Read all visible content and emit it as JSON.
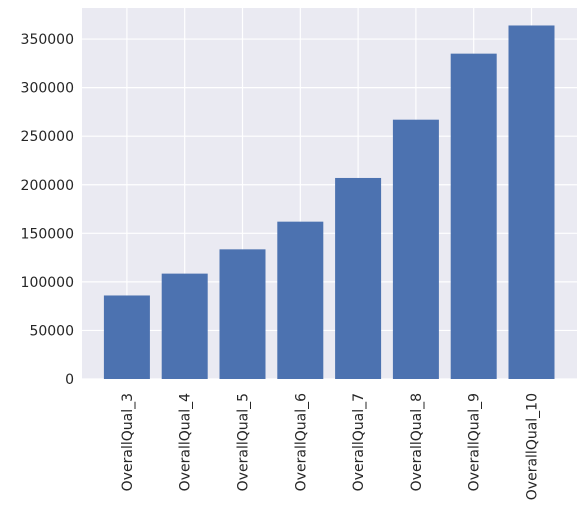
{
  "chart_data": {
    "type": "bar",
    "title": "",
    "xlabel": "",
    "ylabel": "",
    "categories": [
      "OverallQual_3",
      "OverallQual_4",
      "OverallQual_5",
      "OverallQual_6",
      "OverallQual_7",
      "OverallQual_8",
      "OverallQual_9",
      "OverallQual_10"
    ],
    "values": [
      86000,
      108500,
      133500,
      162000,
      207000,
      267000,
      335000,
      364000
    ],
    "ylim": [
      0,
      382000
    ],
    "yticks": [
      0,
      50000,
      100000,
      150000,
      200000,
      250000,
      300000,
      350000
    ],
    "ytick_labels": [
      "0",
      "50000",
      "100000",
      "150000",
      "200000",
      "250000",
      "300000",
      "350000"
    ],
    "grid": true,
    "legend": "none",
    "colors": {
      "bar": "#4c72b0",
      "background": "#eaeaf2",
      "grid": "#ffffff",
      "text": "#262626"
    }
  }
}
